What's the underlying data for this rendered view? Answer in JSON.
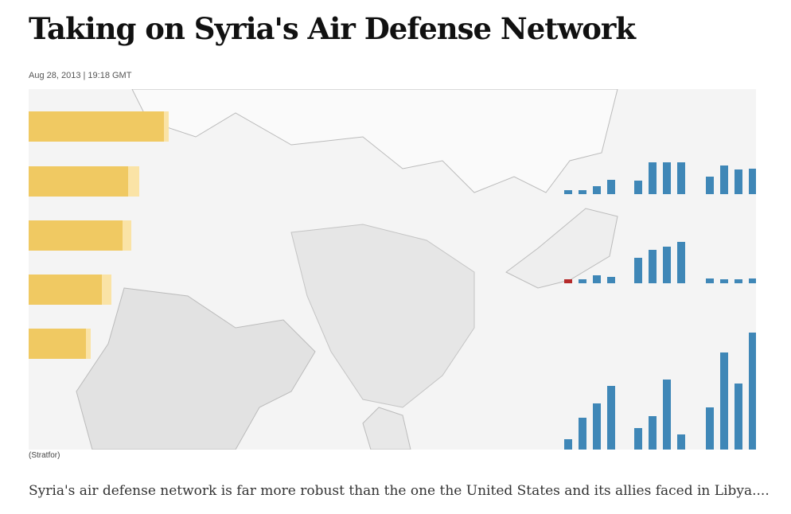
{
  "header": {
    "title": "Taking on Syria's Air Defense Network",
    "date": "Aug 28, 2013 | 19:18 GMT"
  },
  "image": {
    "credit": "(Stratfor)"
  },
  "article": {
    "summary": "Syria's air defense network is far more robust than the one the United States and its allies faced in Libya...."
  }
}
